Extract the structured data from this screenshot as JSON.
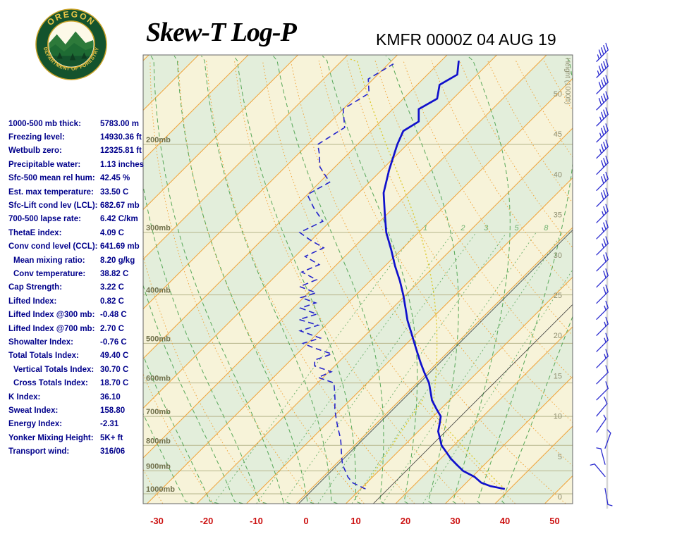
{
  "header": {
    "title": "Skew-T Log-P",
    "station_label": "KMFR 0000Z 04 AUG 19",
    "logo": {
      "top": "OREGON",
      "bottom": "DEPARTMENT OF FORESTRY"
    }
  },
  "stats": {
    "rows": [
      {
        "label": "1000-500 mb thick:",
        "value": "5783.00 m",
        "indent": false
      },
      {
        "label": "Freezing level:",
        "value": "14930.36 ft",
        "indent": false
      },
      {
        "label": "Wetbulb zero:",
        "value": "12325.81 ft",
        "indent": false
      },
      {
        "label": "Precipitable water:",
        "value": "1.13 inches",
        "indent": false
      },
      {
        "label": "Sfc-500 mean rel hum:",
        "value": "42.45 %",
        "indent": false
      },
      {
        "label": "Est. max temperature:",
        "value": "33.50 C",
        "indent": false
      },
      {
        "label": "Sfc-Lift cond lev (LCL):",
        "value": "682.67 mb",
        "indent": false
      },
      {
        "label": "700-500 lapse rate:",
        "value": "6.42 C/km",
        "indent": false
      },
      {
        "label": "ThetaE index:",
        "value": "4.09 C",
        "indent": false
      },
      {
        "label": "Conv cond level (CCL):",
        "value": "641.69 mb",
        "indent": false
      },
      {
        "label": "Mean mixing ratio:",
        "value": "8.20 g/kg",
        "indent": true
      },
      {
        "label": "Conv temperature:",
        "value": "38.82 C",
        "indent": true
      },
      {
        "label": "Cap Strength:",
        "value": "3.22 C",
        "indent": false
      },
      {
        "label": "Lifted Index:",
        "value": "0.82 C",
        "indent": false
      },
      {
        "label": "Lifted Index @300 mb:",
        "value": "-0.48 C",
        "indent": false
      },
      {
        "label": "Lifted Index @700 mb:",
        "value": "2.70 C",
        "indent": false
      },
      {
        "label": "Showalter Index:",
        "value": "-0.76 C",
        "indent": false
      },
      {
        "label": "Total Totals Index:",
        "value": "49.40 C",
        "indent": false
      },
      {
        "label": "Vertical Totals Index:",
        "value": "30.70 C",
        "indent": true
      },
      {
        "label": "Cross Totals Index:",
        "value": "18.70 C",
        "indent": true
      },
      {
        "label": "K Index:",
        "value": "36.10",
        "indent": false
      },
      {
        "label": "Sweat Index:",
        "value": "158.80",
        "indent": false
      },
      {
        "label": "Energy Index:",
        "value": "-2.31",
        "indent": false
      },
      {
        "label": "Yonker Mixing Height:",
        "value": "5K+ ft",
        "indent": false
      },
      {
        "label": "Transport wind:",
        "value": "316/06",
        "indent": false
      }
    ]
  },
  "chart_data": {
    "type": "skewt-log-p",
    "station": "KMFR",
    "valid_time": "0000Z 04 AUG 19",
    "pressure_axis": {
      "labels": [
        "200mb",
        "300mb",
        "400mb",
        "500mb",
        "600mb",
        "700mb",
        "800mb",
        "900mb",
        "1000mb"
      ],
      "values": [
        200,
        300,
        400,
        500,
        600,
        700,
        800,
        900,
        1000
      ],
      "unit": "mb",
      "scale": "log"
    },
    "temp_axis": {
      "ticks": [
        -30,
        -20,
        -10,
        0,
        10,
        20,
        30,
        40,
        50
      ],
      "unit": "C",
      "skew_deg": 45
    },
    "height_axis": {
      "label": "Height (1000ft)",
      "ticks": [
        0,
        5,
        10,
        15,
        20,
        25,
        30,
        35,
        40,
        45,
        50
      ],
      "unit": "1000 ft"
    },
    "mixing_ratio_lines": [
      1,
      2,
      3,
      5,
      8,
      12,
      20
    ],
    "mixing_ratio_labels": [
      1,
      2,
      3,
      5,
      8
    ],
    "reference_isotherms_c": [
      0.5,
      15.5
    ],
    "sounding": {
      "temperature_c": [
        [
          978,
          39
        ],
        [
          965,
          35.5
        ],
        [
          950,
          33
        ],
        [
          925,
          30.5
        ],
        [
          900,
          27
        ],
        [
          875,
          24.5
        ],
        [
          850,
          22
        ],
        [
          825,
          19.8
        ],
        [
          800,
          17.5
        ],
        [
          775,
          15.8
        ],
        [
          750,
          14
        ],
        [
          725,
          12.8
        ],
        [
          700,
          11.5
        ],
        [
          675,
          9
        ],
        [
          650,
          6.5
        ],
        [
          625,
          4.5
        ],
        [
          600,
          2.4
        ],
        [
          575,
          -0.3
        ],
        [
          550,
          -3
        ],
        [
          525,
          -5.7
        ],
        [
          500,
          -8.5
        ],
        [
          475,
          -11.4
        ],
        [
          450,
          -14.5
        ],
        [
          425,
          -17.4
        ],
        [
          400,
          -20.5
        ],
        [
          375,
          -24
        ],
        [
          350,
          -28
        ],
        [
          325,
          -32
        ],
        [
          300,
          -36.5
        ],
        [
          275,
          -40.6
        ],
        [
          250,
          -45
        ],
        [
          225,
          -48.5
        ],
        [
          200,
          -52
        ],
        [
          188,
          -53.5
        ],
        [
          180,
          -52.3
        ],
        [
          170,
          -54.8
        ],
        [
          162,
          -53.2
        ],
        [
          152,
          -55.5
        ],
        [
          145,
          -54
        ],
        [
          136,
          -56.5
        ]
      ],
      "dewpoint_c": [
        [
          978,
          11
        ],
        [
          960,
          8.5
        ],
        [
          950,
          7.1
        ],
        [
          925,
          5
        ],
        [
          900,
          3.3
        ],
        [
          875,
          1.5
        ],
        [
          850,
          0.1
        ],
        [
          825,
          -1.3
        ],
        [
          800,
          -2.7
        ],
        [
          775,
          -4.2
        ],
        [
          750,
          -6
        ],
        [
          725,
          -7.8
        ],
        [
          700,
          -9.6
        ],
        [
          675,
          -11.4
        ],
        [
          650,
          -13
        ],
        [
          625,
          -14.8
        ],
        [
          600,
          -16.7
        ],
        [
          585,
          -21
        ],
        [
          570,
          -19.5
        ],
        [
          555,
          -24
        ],
        [
          540,
          -25.2
        ],
        [
          525,
          -23
        ],
        [
          510,
          -28
        ],
        [
          500,
          -30.9
        ],
        [
          488,
          -28.5
        ],
        [
          472,
          -34
        ],
        [
          460,
          -31.5
        ],
        [
          448,
          -36.5
        ],
        [
          437,
          -34
        ],
        [
          425,
          -38.5
        ],
        [
          415,
          -36.5
        ],
        [
          405,
          -40.5
        ],
        [
          396,
          -38.5
        ],
        [
          385,
          -43
        ],
        [
          373,
          -41
        ],
        [
          360,
          -45.5
        ],
        [
          348,
          -43.5
        ],
        [
          335,
          -48
        ],
        [
          322,
          -46
        ],
        [
          310,
          -50.5
        ],
        [
          300,
          -53.9
        ],
        [
          285,
          -51.5
        ],
        [
          268,
          -56
        ],
        [
          252,
          -60
        ],
        [
          238,
          -58
        ],
        [
          222,
          -63
        ],
        [
          208,
          -66
        ],
        [
          200,
          -68
        ],
        [
          185,
          -66
        ],
        [
          170,
          -70
        ],
        [
          158,
          -68
        ],
        [
          148,
          -71
        ],
        [
          138,
          -69
        ]
      ]
    },
    "parcel": {
      "surface_p_mb": 978,
      "surface_temp_c": 39,
      "lcl_mb": 682.67,
      "ccl_mb": 641.69,
      "mean_mixing_ratio_gkg": 8.2
    },
    "winds": [
      {
        "height_kft": 54,
        "speed_kt": 45,
        "staff_angle_deg": 45,
        "col": 1
      },
      {
        "height_kft": 52,
        "speed_kt": 45,
        "staff_angle_deg": 45,
        "col": 1
      },
      {
        "height_kft": 50,
        "speed_kt": 40,
        "staff_angle_deg": 45,
        "col": 1
      },
      {
        "height_kft": 48,
        "speed_kt": 40,
        "staff_angle_deg": 45,
        "col": 1
      },
      {
        "height_kft": 46,
        "speed_kt": 35,
        "staff_angle_deg": 45,
        "col": 1
      },
      {
        "height_kft": 44,
        "speed_kt": 35,
        "staff_angle_deg": 45,
        "col": 1
      },
      {
        "height_kft": 42,
        "speed_kt": 35,
        "staff_angle_deg": 45,
        "col": 1
      },
      {
        "height_kft": 40,
        "speed_kt": 30,
        "staff_angle_deg": 45,
        "col": 1
      },
      {
        "height_kft": 38,
        "speed_kt": 30,
        "staff_angle_deg": 45,
        "col": 1
      },
      {
        "height_kft": 36,
        "speed_kt": 30,
        "staff_angle_deg": 45,
        "col": 1
      },
      {
        "height_kft": 34,
        "speed_kt": 25,
        "staff_angle_deg": 45,
        "col": 1
      },
      {
        "height_kft": 32,
        "speed_kt": 25,
        "staff_angle_deg": 45,
        "col": 1
      },
      {
        "height_kft": 30,
        "speed_kt": 25,
        "staff_angle_deg": 45,
        "col": 1
      },
      {
        "height_kft": 28,
        "speed_kt": 20,
        "staff_angle_deg": 45,
        "col": 1
      },
      {
        "height_kft": 26,
        "speed_kt": 20,
        "staff_angle_deg": 45,
        "col": 1
      },
      {
        "height_kft": 24,
        "speed_kt": 20,
        "staff_angle_deg": 45,
        "col": 1
      },
      {
        "height_kft": 22,
        "speed_kt": 15,
        "staff_angle_deg": 45,
        "col": 1
      },
      {
        "height_kft": 20,
        "speed_kt": 15,
        "staff_angle_deg": 45,
        "col": 1
      },
      {
        "height_kft": 18,
        "speed_kt": 15,
        "staff_angle_deg": 45,
        "col": 1
      },
      {
        "height_kft": 16,
        "speed_kt": 15,
        "staff_angle_deg": 45,
        "col": 1
      },
      {
        "height_kft": 14,
        "speed_kt": 10,
        "staff_angle_deg": 45,
        "col": 1
      },
      {
        "height_kft": 12,
        "speed_kt": 10,
        "staff_angle_deg": 45,
        "col": 1
      },
      {
        "height_kft": 10,
        "speed_kt": 10,
        "staff_angle_deg": 40,
        "col": 1
      },
      {
        "height_kft": 8,
        "speed_kt": 5,
        "staff_angle_deg": 35,
        "col": 1
      },
      {
        "height_kft": 6,
        "speed_kt": 5,
        "staff_angle_deg": 20,
        "col": 2
      },
      {
        "height_kft": 4,
        "speed_kt": 5,
        "staff_angle_deg": -15,
        "col": 2
      },
      {
        "height_kft": 2.5,
        "speed_kt": 5,
        "staff_angle_deg": -40,
        "col": 2
      },
      {
        "height_kft": 1,
        "speed_kt": 6,
        "staff_angle_deg": 170,
        "col": 2
      }
    ],
    "colors": {
      "isotherm": "#f0a43c",
      "dry_adiabat": "#f0a43c",
      "moist_adiabat": "#58a858",
      "mixing_ratio": "#6cb06c",
      "band_green": "#e3eedb",
      "band_cream": "#f7f3d9",
      "temperature": "#1010cc",
      "dewpoint": "#2424cc",
      "parcel": "#ddca30",
      "wind": "#2b2bd0",
      "pressure_label": "#6f6f4a",
      "height_label": "#8f8f70",
      "temp_tick": "#cc1111",
      "grid": "#b6b58b",
      "reference_line": "#3a3a3a"
    }
  }
}
